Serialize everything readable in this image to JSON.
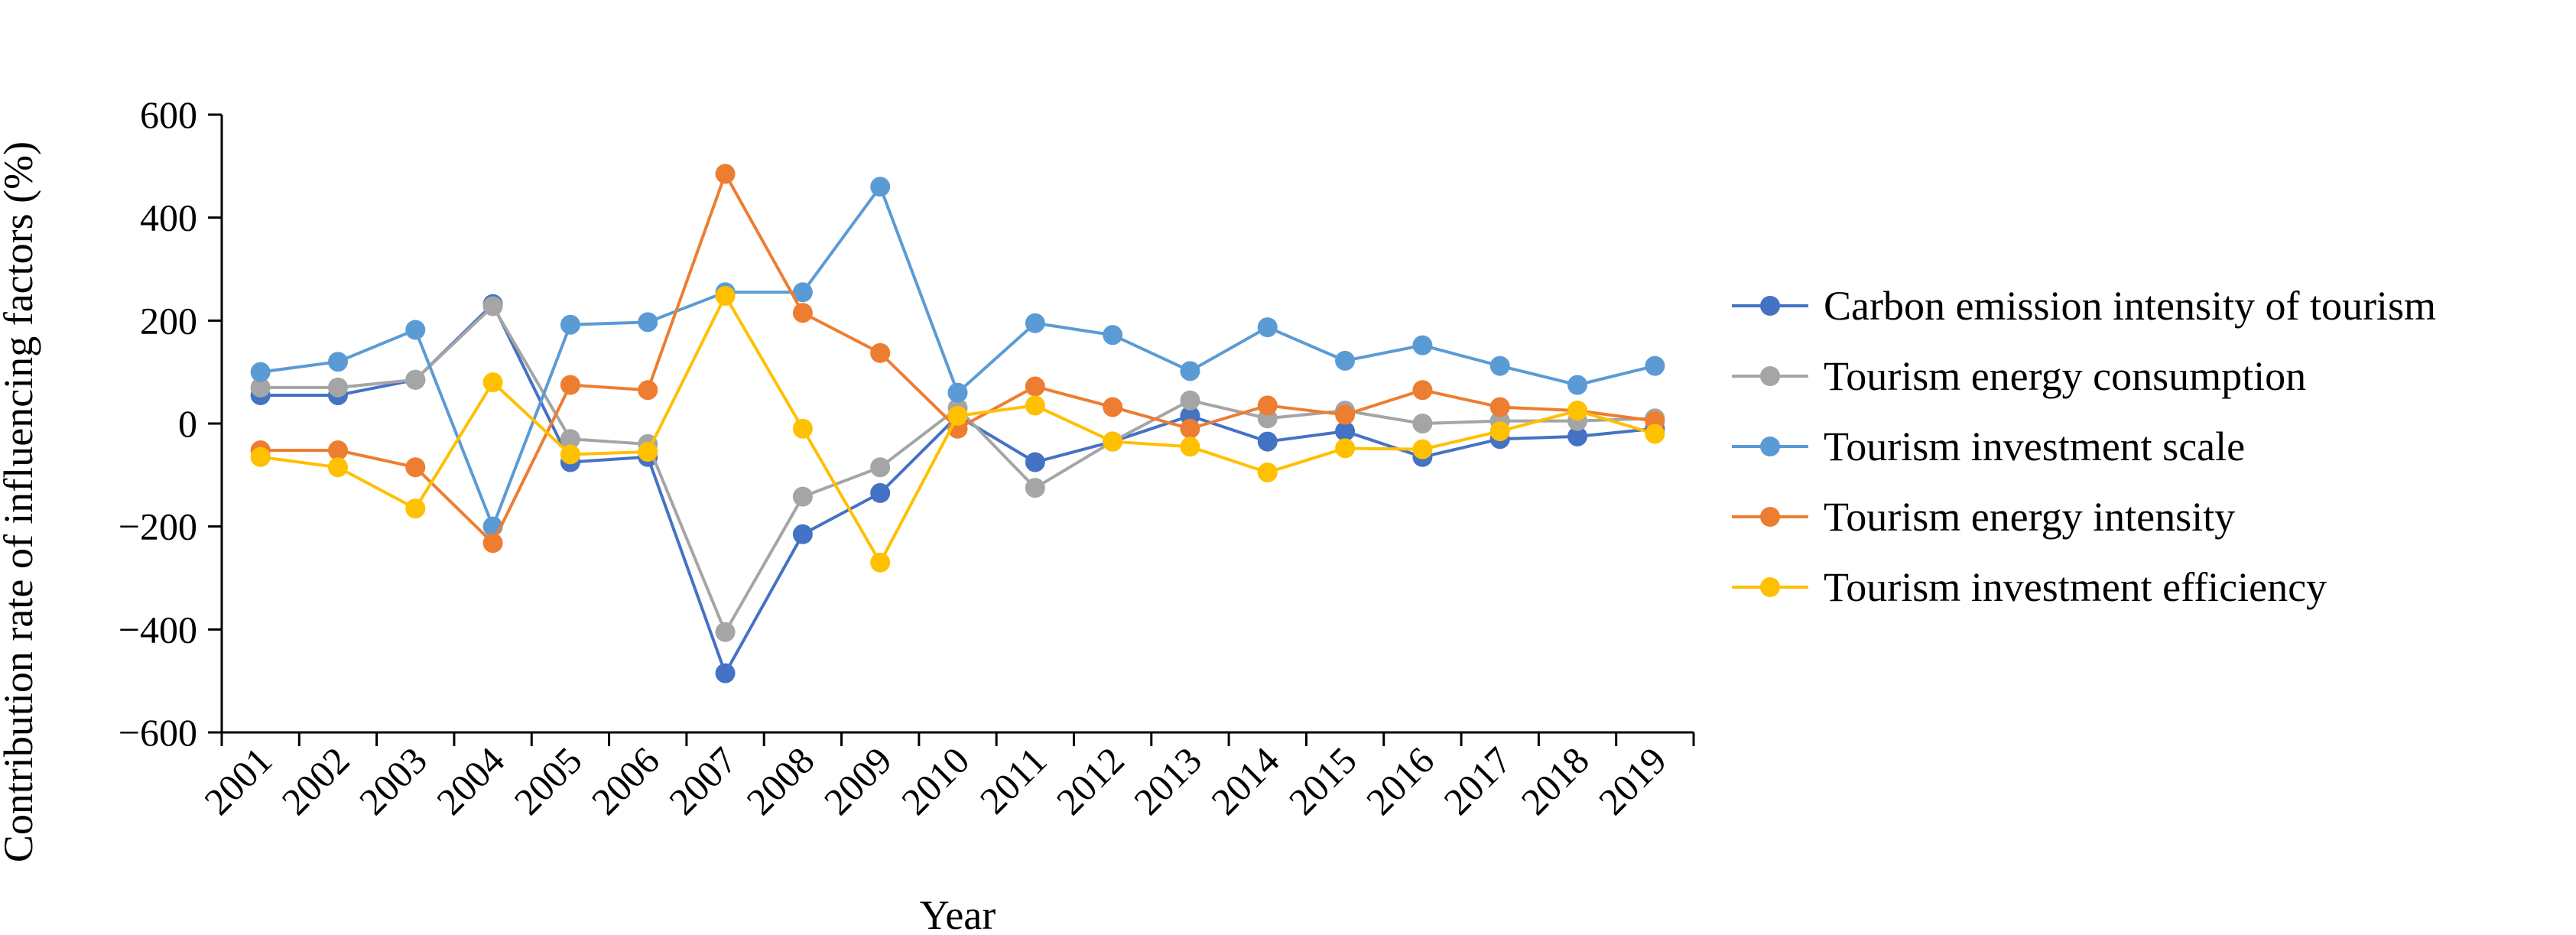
{
  "chart_data": {
    "type": "line",
    "title": "",
    "xlabel": "Year",
    "ylabel": "Contribution rate of influencing factors (%)",
    "ylim": [
      -600,
      600
    ],
    "yticks": [
      600,
      400,
      200,
      0,
      -200,
      -400,
      -600
    ],
    "ytick_labels": [
      "600",
      "400",
      "200",
      "0",
      "−200",
      "−400",
      "−600"
    ],
    "grid": false,
    "legend_position": "right",
    "x": [
      "2001",
      "2002",
      "2003",
      "2004",
      "2005",
      "2006",
      "2007",
      "2008",
      "2009",
      "2010",
      "2011",
      "2012",
      "2013",
      "2014",
      "2015",
      "2016",
      "2017",
      "2018",
      "2019"
    ],
    "series": [
      {
        "name": "Carbon emission intensity of tourism",
        "color": "#4472C4",
        "values": [
          55,
          55,
          85,
          232,
          -75,
          -65,
          -485,
          -215,
          -135,
          15,
          -75,
          -35,
          15,
          -35,
          -15,
          -65,
          -30,
          -25,
          -10
        ]
      },
      {
        "name": "Tourism energy consumption",
        "color": "#A5A5A5",
        "values": [
          70,
          70,
          85,
          228,
          -30,
          -40,
          -405,
          -142,
          -85,
          30,
          -125,
          -35,
          45,
          10,
          25,
          0,
          5,
          5,
          10
        ]
      },
      {
        "name": "Tourism investment scale",
        "color": "#5B9BD5",
        "values": [
          100,
          120,
          182,
          -200,
          192,
          197,
          255,
          255,
          460,
          60,
          195,
          172,
          102,
          187,
          122,
          152,
          112,
          75,
          112
        ]
      },
      {
        "name": "Tourism energy intensity",
        "color": "#ED7D31",
        "values": [
          -52,
          -52,
          -85,
          -232,
          75,
          65,
          485,
          215,
          137,
          -10,
          72,
          32,
          -10,
          35,
          17,
          65,
          32,
          25,
          5
        ]
      },
      {
        "name": "Tourism investment efficiency",
        "color": "#FFC000",
        "values": [
          -65,
          -85,
          -165,
          80,
          -60,
          -55,
          248,
          -10,
          -270,
          15,
          35,
          -35,
          -45,
          -95,
          -48,
          -50,
          -15,
          25,
          -20
        ]
      }
    ]
  }
}
